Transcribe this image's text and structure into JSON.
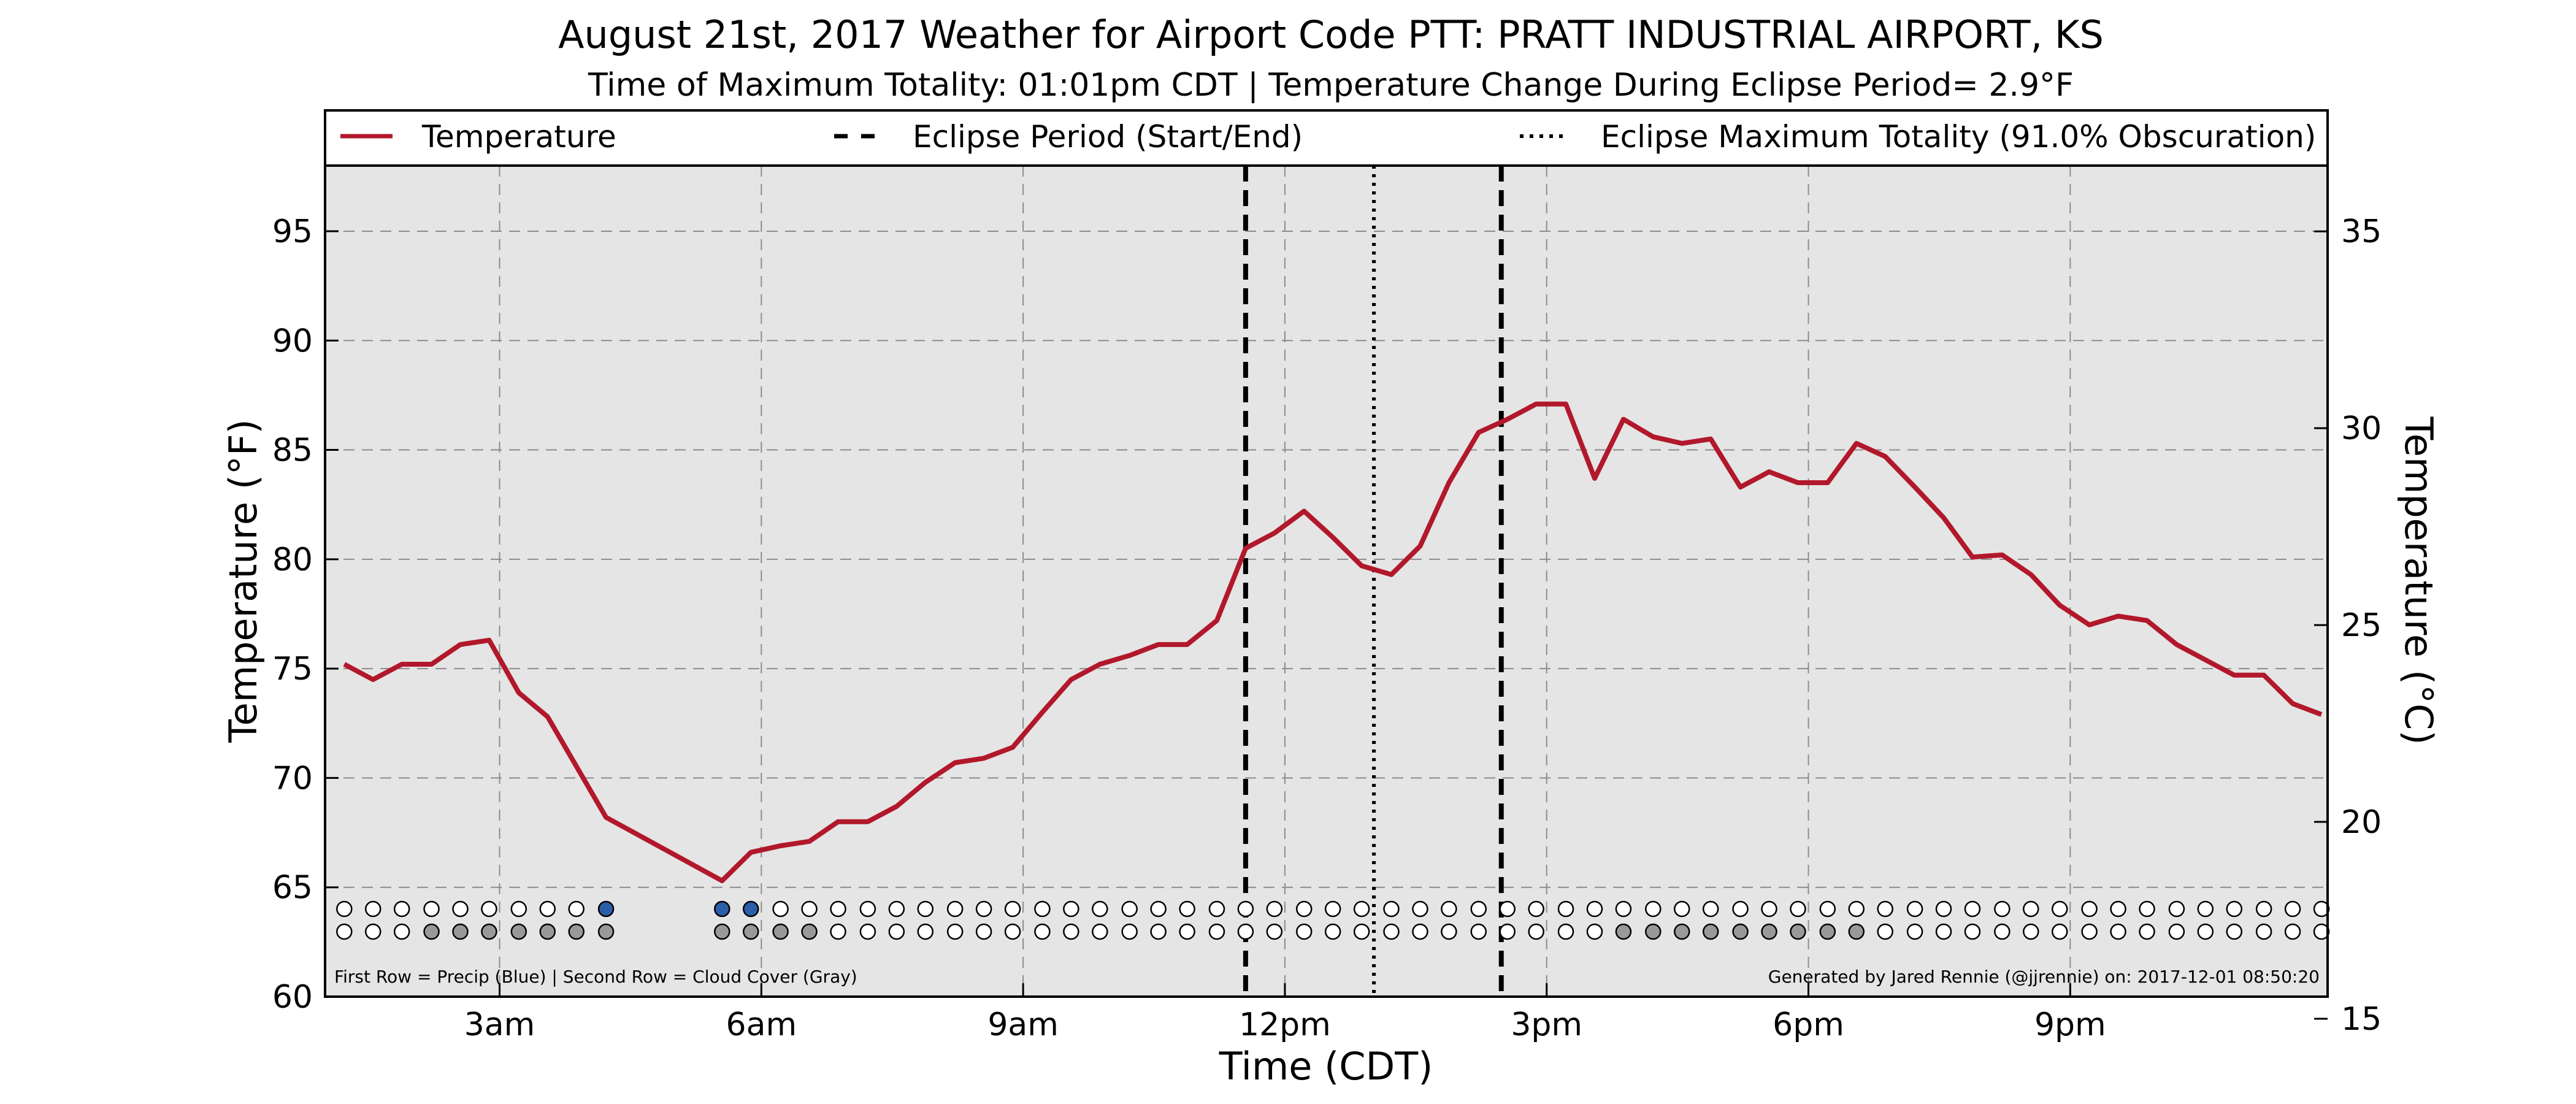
{
  "chart_data": {
    "type": "line",
    "title": "August 21st, 2017 Weather for Airport Code PTT: PRATT INDUSTRIAL AIRPORT, KS",
    "subtitle": "Time of Maximum Totality: 01:01pm CDT | Temperature Change During Eclipse Period= 2.9°F",
    "xlabel": "Time (CDT)",
    "ylabel": "Temperature (°F)",
    "ylabel_right": "Temperature (°C)",
    "xlim": [
      1.0,
      23.95
    ],
    "ylim": [
      60,
      98
    ],
    "ylim_right_c": [
      15.56,
      36.67
    ],
    "grid": true,
    "legend_position": "top",
    "x_ticks": [
      {
        "x": 3,
        "label": "3am"
      },
      {
        "x": 6,
        "label": "6am"
      },
      {
        "x": 9,
        "label": "9am"
      },
      {
        "x": 12,
        "label": "12pm"
      },
      {
        "x": 15,
        "label": "3pm"
      },
      {
        "x": 18,
        "label": "6pm"
      },
      {
        "x": 21,
        "label": "9pm"
      }
    ],
    "y_ticks": [
      60,
      65,
      70,
      75,
      80,
      85,
      90,
      95
    ],
    "y_ticks_right": [
      15,
      20,
      25,
      30,
      35
    ],
    "legend": [
      {
        "label": "Temperature",
        "style": "solid"
      },
      {
        "label": "Eclipse Period (Start/End)",
        "style": "dashed"
      },
      {
        "label": "Eclipse Maximum Totality (91.0% Obscuration)",
        "style": "dotted"
      }
    ],
    "series": [
      {
        "name": "Temperature",
        "color": "#b2182b",
        "x": [
          1.22,
          1.55,
          1.88,
          2.22,
          2.55,
          2.88,
          3.22,
          3.55,
          4.22,
          5.55,
          5.88,
          6.22,
          6.55,
          6.88,
          7.22,
          7.55,
          7.88,
          8.22,
          8.55,
          8.88,
          9.22,
          9.55,
          9.88,
          10.22,
          10.55,
          10.88,
          11.22,
          11.55,
          11.88,
          12.22,
          12.55,
          12.88,
          13.22,
          13.55,
          13.88,
          14.22,
          14.55,
          14.88,
          15.22,
          15.55,
          15.88,
          16.22,
          16.55,
          16.88,
          17.22,
          17.55,
          17.88,
          18.22,
          18.55,
          18.88,
          19.22,
          19.55,
          19.88,
          20.22,
          20.55,
          20.88,
          21.22,
          21.55,
          21.88,
          22.22,
          22.55,
          22.88,
          23.22,
          23.55,
          23.88
        ],
        "y": [
          75.2,
          74.5,
          75.2,
          75.2,
          76.1,
          76.3,
          73.9,
          72.8,
          68.2,
          65.3,
          66.6,
          66.9,
          67.1,
          68.0,
          68.0,
          68.7,
          69.8,
          70.7,
          70.9,
          71.4,
          73.0,
          74.5,
          75.2,
          75.6,
          76.1,
          76.1,
          77.2,
          80.5,
          81.2,
          82.2,
          81.0,
          79.7,
          79.3,
          80.6,
          83.5,
          85.8,
          86.4,
          87.1,
          87.1,
          83.7,
          86.4,
          85.6,
          85.3,
          85.5,
          83.3,
          84.0,
          83.5,
          83.5,
          85.3,
          84.7,
          83.3,
          81.9,
          80.1,
          80.2,
          79.3,
          77.9,
          77.0,
          77.4,
          77.2,
          76.1,
          75.4,
          74.7,
          74.7,
          73.4,
          72.9
        ]
      }
    ],
    "eclipse_start_x": 11.55,
    "eclipse_end_x": 14.48,
    "eclipse_max_x": 13.02,
    "precip_row": {
      "x": [
        1.22,
        1.55,
        1.88,
        2.22,
        2.55,
        2.88,
        3.22,
        3.55,
        3.88,
        4.22,
        5.55,
        5.88,
        6.22,
        6.55,
        6.88,
        7.22,
        7.55,
        7.88,
        8.22,
        8.55,
        8.88,
        9.22,
        9.55,
        9.88,
        10.22,
        10.55,
        10.88,
        11.22,
        11.55,
        11.88,
        12.22,
        12.55,
        12.88,
        13.22,
        13.55,
        13.88,
        14.22,
        14.55,
        14.88,
        15.22,
        15.55,
        15.88,
        16.22,
        16.55,
        16.88,
        17.22,
        17.55,
        17.88,
        18.22,
        18.55,
        18.88,
        19.22,
        19.55,
        19.88,
        20.22,
        20.55,
        20.88,
        21.22,
        21.55,
        21.88,
        22.22,
        22.55,
        22.88,
        23.22,
        23.55,
        23.88
      ],
      "precip": [
        0,
        0,
        0,
        0,
        0,
        0,
        0,
        0,
        0,
        1,
        1,
        1,
        0,
        0,
        0,
        0,
        0,
        0,
        0,
        0,
        0,
        0,
        0,
        0,
        0,
        0,
        0,
        0,
        0,
        0,
        0,
        0,
        0,
        0,
        0,
        0,
        0,
        0,
        0,
        0,
        0,
        0,
        0,
        0,
        0,
        0,
        0,
        0,
        0,
        0,
        0,
        0,
        0,
        0,
        0,
        0,
        0,
        0,
        0,
        0,
        0,
        0,
        0,
        0,
        0,
        0
      ],
      "cloud": [
        0,
        0,
        0,
        1,
        1,
        1,
        1,
        1,
        1,
        1,
        1,
        1,
        1,
        1,
        0,
        0,
        0,
        0,
        0,
        0,
        0,
        0,
        0,
        0,
        0,
        0,
        0,
        0,
        0,
        0,
        0,
        0,
        0,
        0,
        0,
        0,
        0,
        0,
        0,
        0,
        0,
        1,
        1,
        1,
        1,
        1,
        1,
        1,
        1,
        1,
        0,
        0,
        0,
        0,
        0,
        0,
        0,
        0,
        0,
        0,
        0,
        0,
        0,
        0,
        0,
        0
      ],
      "precip_color": "#2a5ea8",
      "cloud_color": "#999999"
    },
    "footnote_left": "First Row = Precip (Blue) | Second Row = Cloud Cover (Gray)",
    "footnote_right": "Generated by Jared Rennie (@jjrennie) on: 2017-12-01 08:50:20"
  }
}
